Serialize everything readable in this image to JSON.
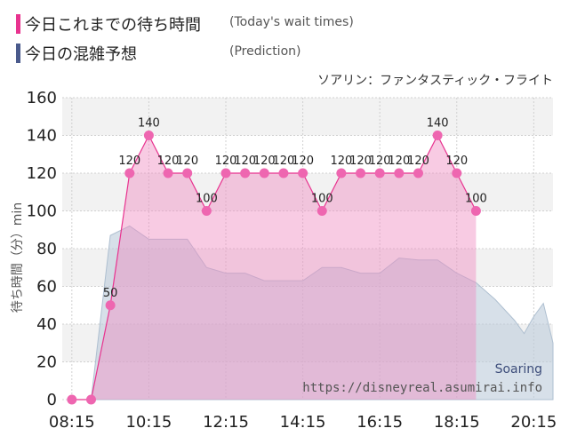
{
  "legend": {
    "today": {
      "label": "今日これまでの待ち時間",
      "sublabel": "(Today's wait times)",
      "color": "#e8338f"
    },
    "prediction": {
      "label": "今日の混雑予想",
      "sublabel": "(Prediction)",
      "color": "#4a5a8c"
    }
  },
  "subtitle": "ソアリン：ファンタスティック・フライト",
  "watermark": {
    "line1": "Soaring",
    "line2": "https://disneyreal.asumirai.info"
  },
  "chart_data": {
    "type": "area",
    "ylabel": "待ち時間（分）min",
    "xlim": [
      "08:00",
      "20:45"
    ],
    "ylim": [
      0,
      160
    ],
    "y_ticks": [
      0,
      20,
      40,
      60,
      80,
      100,
      120,
      140,
      160
    ],
    "x_ticks": [
      "08:15",
      "10:15",
      "12:15",
      "14:15",
      "16:15",
      "18:15",
      "20:15"
    ],
    "grid": true,
    "series": [
      {
        "name": "今日の混雑予想",
        "color": "#bccbdb",
        "x": [
          "08:15",
          "08:45",
          "09:15",
          "09:45",
          "10:15",
          "10:45",
          "11:15",
          "11:45",
          "12:15",
          "12:45",
          "13:15",
          "13:45",
          "14:15",
          "14:45",
          "15:15",
          "15:45",
          "16:15",
          "16:45",
          "17:15",
          "17:45",
          "18:15",
          "18:45",
          "19:15",
          "19:45",
          "20:00",
          "20:15",
          "20:30",
          "20:45"
        ],
        "values": [
          0,
          0,
          87,
          92,
          85,
          85,
          85,
          70,
          67,
          67,
          63,
          63,
          63,
          70,
          70,
          67,
          67,
          75,
          74,
          74,
          67,
          62,
          53,
          42,
          35,
          44,
          51,
          30
        ]
      },
      {
        "name": "今日これまでの待ち時間",
        "color": "#e8338f",
        "x": [
          "08:15",
          "08:45",
          "09:15",
          "09:45",
          "10:15",
          "10:45",
          "11:15",
          "11:45",
          "12:15",
          "12:45",
          "13:15",
          "13:45",
          "14:15",
          "14:45",
          "15:15",
          "15:45",
          "16:15",
          "16:45",
          "17:15",
          "17:45",
          "18:15",
          "18:45"
        ],
        "values": [
          0,
          0,
          50,
          120,
          140,
          120,
          120,
          100,
          120,
          120,
          120,
          120,
          120,
          100,
          120,
          120,
          120,
          120,
          120,
          140,
          120,
          100
        ],
        "labels": [
          "",
          "",
          "50",
          "120",
          "140",
          "120",
          "120",
          "100",
          "120",
          "120",
          "120",
          "120",
          "120",
          "100",
          "120",
          "120",
          "120",
          "120",
          "120",
          "140",
          "120",
          "100"
        ]
      }
    ]
  }
}
